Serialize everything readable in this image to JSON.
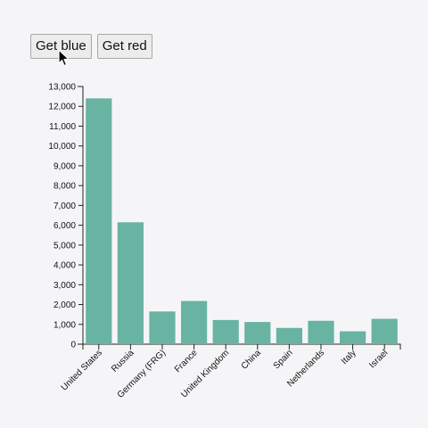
{
  "buttons": {
    "blue_label": "Get blue",
    "red_label": "Get red"
  },
  "chart_data": {
    "type": "bar",
    "title": "",
    "xlabel": "",
    "ylabel": "",
    "categories": [
      "United States",
      "Russia",
      "Germany (FRG)",
      "France",
      "United Kingdom",
      "China",
      "Spain",
      "Netherlands",
      "Italy",
      "Israel"
    ],
    "values": [
      12400,
      6150,
      1650,
      2180,
      1220,
      1120,
      820,
      1180,
      650,
      1280
    ],
    "ylim": [
      0,
      13000
    ],
    "yticks": [
      0,
      1000,
      2000,
      3000,
      4000,
      5000,
      6000,
      7000,
      8000,
      9000,
      10000,
      11000,
      12000,
      13000
    ],
    "ytick_labels": [
      "0",
      "1,000",
      "2,000",
      "3,000",
      "4,000",
      "5,000",
      "6,000",
      "7,000",
      "8,000",
      "9,000",
      "10,000",
      "11,000",
      "12,000",
      "13,000"
    ],
    "bar_color": "#69b3a2",
    "grid": false
  }
}
